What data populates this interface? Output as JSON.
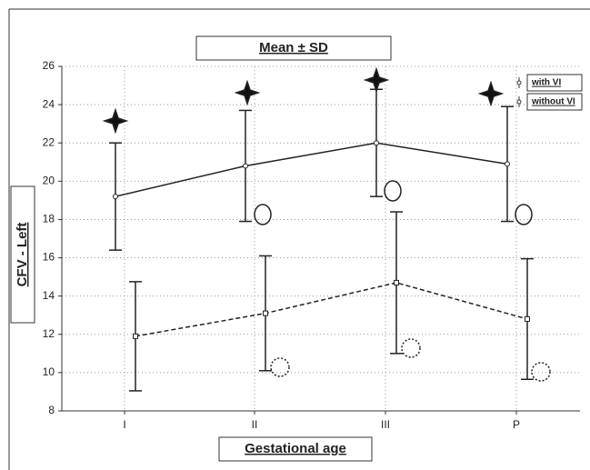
{
  "chart_data": {
    "type": "line",
    "title": "Mean ± SD",
    "x_label": "Gestational age",
    "y_label": "CFV - Left",
    "categories": [
      "I",
      "II",
      "III",
      "P"
    ],
    "series": [
      {
        "name": "with VI",
        "color": "#222222",
        "dash": false,
        "values": [
          19.2,
          20.8,
          22.0,
          20.9
        ],
        "errors": [
          2.8,
          2.9,
          2.8,
          3.0
        ]
      },
      {
        "name": "without VI",
        "color": "#222222",
        "dash": true,
        "values": [
          11.9,
          13.1,
          14.7,
          12.8
        ],
        "errors": [
          2.85,
          3.0,
          3.7,
          3.15
        ]
      }
    ],
    "ylim": [
      8,
      26
    ],
    "yticks": [
      8,
      10,
      12,
      14,
      16,
      18,
      20,
      22,
      24,
      26
    ],
    "grid": true
  }
}
